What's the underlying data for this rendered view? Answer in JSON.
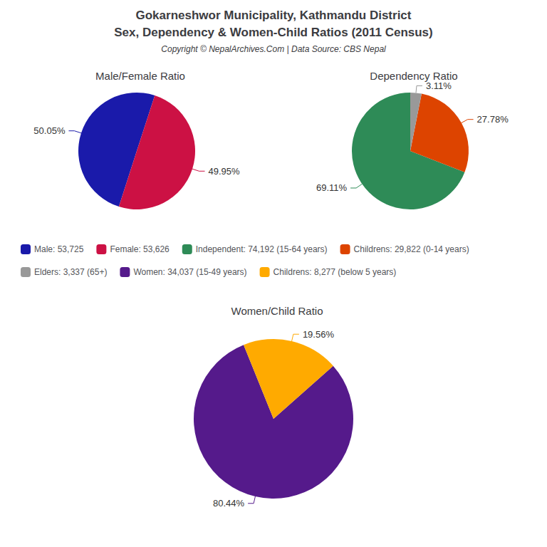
{
  "title": "Gokarneshwor Municipality, Kathmandu District",
  "subtitle": "Sex, Dependency & Women-Child Ratios (2011 Census)",
  "annotations": [
    "Copyright © NepalArchives.Com | Data Source: CBS Nepal"
  ],
  "chart_data": [
    {
      "type": "pie",
      "title": "Male/Female Ratio",
      "categories": [
        "Male: 53,725",
        "Female: 53,626"
      ],
      "values": [
        50.05,
        49.95
      ],
      "value_labels": [
        "50.05%",
        "49.95%"
      ],
      "colors": [
        "#1a1aaa",
        "#cc1144"
      ],
      "data_labels": true,
      "legend": "center"
    },
    {
      "type": "pie",
      "title": "Dependency Ratio",
      "categories": [
        "Independent: 74,192 (15-64 years)",
        "Childrens: 29,822 (0-14 years)",
        "Elders: 3,337 (65+)"
      ],
      "values": [
        69.11,
        27.78,
        3.11
      ],
      "value_labels": [
        "69.11%",
        "27.78%",
        "3.11%"
      ],
      "colors": [
        "#2e8b57",
        "#dd4400",
        "#999999"
      ],
      "data_labels": true,
      "legend": "center"
    },
    {
      "type": "pie",
      "title": "Women/Child Ratio",
      "categories": [
        "Women: 34,037 (15-49 years)",
        "Childrens: 8,277 (below 5 years)"
      ],
      "values": [
        80.44,
        19.56
      ],
      "value_labels": [
        "80.44%",
        "19.56%"
      ],
      "colors": [
        "#551a8b",
        "#ffaa00"
      ],
      "data_labels": true,
      "legend": "center"
    }
  ]
}
